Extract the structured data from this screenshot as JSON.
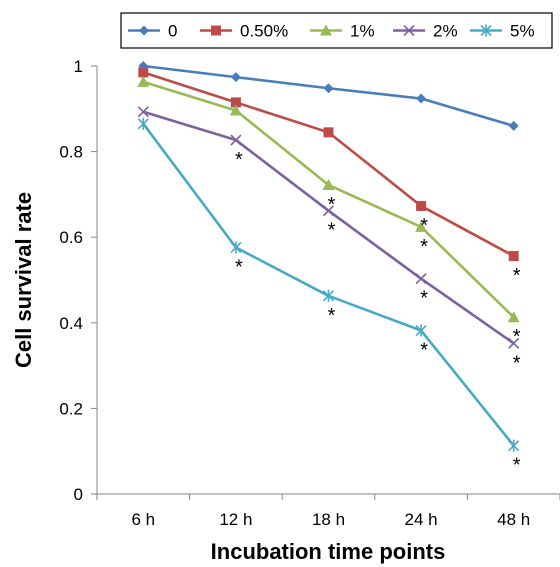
{
  "chart_data": {
    "type": "line",
    "xlabel": "Incubation time points",
    "ylabel": "Cell survival rate",
    "categories": [
      "6 h",
      "12 h",
      "18 h",
      "24 h",
      "48 h"
    ],
    "ylim": [
      0,
      1
    ],
    "yticks": [
      "0",
      "0.2",
      "0.4",
      "0.6",
      "0.8",
      "1"
    ],
    "grid": false,
    "legend_position": "top",
    "series": [
      {
        "name": "0",
        "color": "#4a7ebb",
        "marker": "diamond",
        "values": [
          1.0,
          0.974,
          0.948,
          0.924,
          0.86
        ],
        "annotations": [
          "",
          "",
          "",
          "",
          ""
        ]
      },
      {
        "name": "0.50%",
        "color": "#be4b48",
        "marker": "square",
        "values": [
          0.985,
          0.915,
          0.845,
          0.673,
          0.556
        ],
        "annotations": [
          "",
          "",
          "",
          "*",
          "*"
        ]
      },
      {
        "name": "1%",
        "color": "#98b954",
        "marker": "triangle",
        "values": [
          0.963,
          0.896,
          0.722,
          0.624,
          0.413
        ],
        "annotations": [
          "",
          "",
          "*",
          "*",
          "*"
        ]
      },
      {
        "name": "2%",
        "color": "#7d60a0",
        "marker": "x",
        "values": [
          0.893,
          0.827,
          0.662,
          0.503,
          0.352
        ],
        "annotations": [
          "",
          "*",
          "*",
          "*",
          "*"
        ]
      },
      {
        "name": "5%",
        "color": "#46aac5",
        "marker": "star",
        "values": [
          0.865,
          0.576,
          0.463,
          0.382,
          0.113
        ],
        "annotations": [
          "",
          "*",
          "*",
          "*",
          "*"
        ]
      }
    ]
  }
}
